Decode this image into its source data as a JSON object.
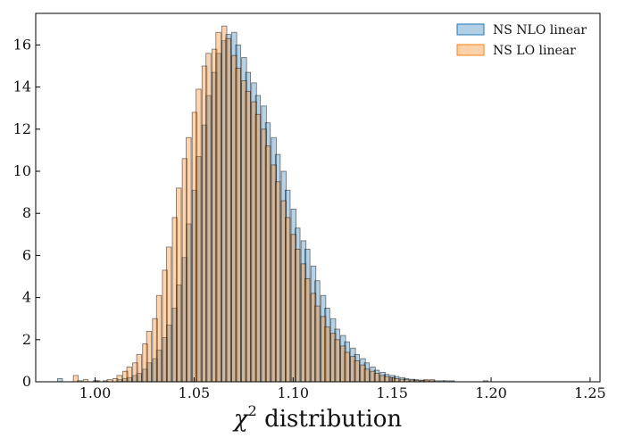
{
  "chart_data": {
    "type": "bar",
    "subtype": "histogram-overlay",
    "xlabel": "χ² distribution",
    "xlabel_parts": {
      "symbol": "χ",
      "superscript": "2",
      "text": " distribution"
    },
    "xlim": [
      0.97,
      1.255
    ],
    "ylim": [
      0,
      17.5
    ],
    "xticks": [
      "1.00",
      "1.05",
      "1.10",
      "1.15",
      "1.20",
      "1.25"
    ],
    "xtick_values": [
      1.0,
      1.05,
      1.1,
      1.15,
      1.2,
      1.25
    ],
    "yticks": [
      "0",
      "2",
      "4",
      "6",
      "8",
      "10",
      "12",
      "14",
      "16"
    ],
    "ytick_values": [
      0,
      2,
      4,
      6,
      8,
      10,
      12,
      14,
      16
    ],
    "grid": false,
    "legend_position": "top-right",
    "series": [
      {
        "name": "NS  NLO linear",
        "color": "#1f77b4",
        "bin_width": 0.0025,
        "bin_left_edges": [
          0.981,
          0.991,
          0.999,
          1.004,
          1.011,
          1.014,
          1.016,
          1.019,
          1.021,
          1.024,
          1.026,
          1.029,
          1.031,
          1.034,
          1.036,
          1.039,
          1.041,
          1.044,
          1.046,
          1.049,
          1.051,
          1.054,
          1.056,
          1.059,
          1.061,
          1.064,
          1.066,
          1.069,
          1.071,
          1.074,
          1.076,
          1.079,
          1.081,
          1.084,
          1.086,
          1.089,
          1.091,
          1.094,
          1.096,
          1.099,
          1.101,
          1.104,
          1.106,
          1.109,
          1.111,
          1.114,
          1.116,
          1.119,
          1.121,
          1.124,
          1.126,
          1.129,
          1.131,
          1.134,
          1.136,
          1.139,
          1.141,
          1.144,
          1.146,
          1.149,
          1.151,
          1.154,
          1.156,
          1.159,
          1.161,
          1.164,
          1.166,
          1.169,
          1.171,
          1.174,
          1.176,
          1.179,
          1.196
        ],
        "values": [
          0.15,
          0.05,
          0.05,
          0.05,
          0.1,
          0.15,
          0.2,
          0.3,
          0.4,
          0.6,
          0.9,
          1.1,
          1.5,
          2.1,
          2.7,
          3.5,
          4.6,
          5.9,
          7.5,
          9.1,
          10.7,
          12.2,
          13.6,
          14.7,
          15.6,
          16.2,
          16.5,
          16.6,
          16.0,
          15.4,
          14.7,
          14.2,
          13.6,
          13.1,
          12.3,
          11.6,
          10.8,
          10.0,
          9.1,
          8.2,
          7.3,
          6.7,
          6.3,
          5.5,
          4.8,
          4.1,
          3.5,
          3.0,
          2.5,
          2.2,
          1.9,
          1.6,
          1.3,
          1.1,
          0.9,
          0.7,
          0.55,
          0.45,
          0.35,
          0.3,
          0.25,
          0.2,
          0.15,
          0.12,
          0.1,
          0.08,
          0.06,
          0.05,
          0.05,
          0.05,
          0.05,
          0.05,
          0.05
        ]
      },
      {
        "name": "NS  LO linear",
        "color": "#ff7f0e",
        "bin_width": 0.0025,
        "bin_left_edges": [
          0.989,
          0.994,
          1.0,
          1.006,
          1.009,
          1.011,
          1.014,
          1.016,
          1.019,
          1.021,
          1.024,
          1.026,
          1.029,
          1.031,
          1.034,
          1.036,
          1.039,
          1.041,
          1.044,
          1.046,
          1.049,
          1.051,
          1.054,
          1.056,
          1.059,
          1.061,
          1.064,
          1.066,
          1.069,
          1.071,
          1.074,
          1.076,
          1.079,
          1.081,
          1.084,
          1.086,
          1.089,
          1.091,
          1.094,
          1.096,
          1.099,
          1.101,
          1.104,
          1.106,
          1.109,
          1.111,
          1.114,
          1.116,
          1.119,
          1.121,
          1.124,
          1.126,
          1.129,
          1.131,
          1.134,
          1.136,
          1.139,
          1.141,
          1.144,
          1.146,
          1.149,
          1.151,
          1.154,
          1.156,
          1.159,
          1.161,
          1.164,
          1.166,
          1.169
        ],
        "values": [
          0.3,
          0.1,
          0.05,
          0.1,
          0.15,
          0.3,
          0.5,
          0.7,
          0.9,
          1.3,
          1.8,
          2.4,
          3.0,
          4.1,
          5.3,
          6.4,
          7.8,
          9.2,
          10.6,
          11.6,
          12.8,
          13.9,
          15.0,
          15.6,
          15.8,
          16.6,
          16.9,
          16.3,
          15.5,
          14.9,
          14.3,
          13.8,
          13.3,
          12.7,
          12.0,
          11.2,
          10.3,
          9.5,
          8.6,
          7.8,
          7.0,
          6.3,
          5.6,
          4.9,
          4.2,
          3.6,
          3.1,
          2.6,
          2.3,
          2.0,
          1.7,
          1.4,
          1.2,
          1.0,
          0.8,
          0.6,
          0.5,
          0.4,
          0.3,
          0.25,
          0.2,
          0.15,
          0.12,
          0.1,
          0.08,
          0.06,
          0.05,
          0.1,
          0.1
        ]
      }
    ]
  }
}
